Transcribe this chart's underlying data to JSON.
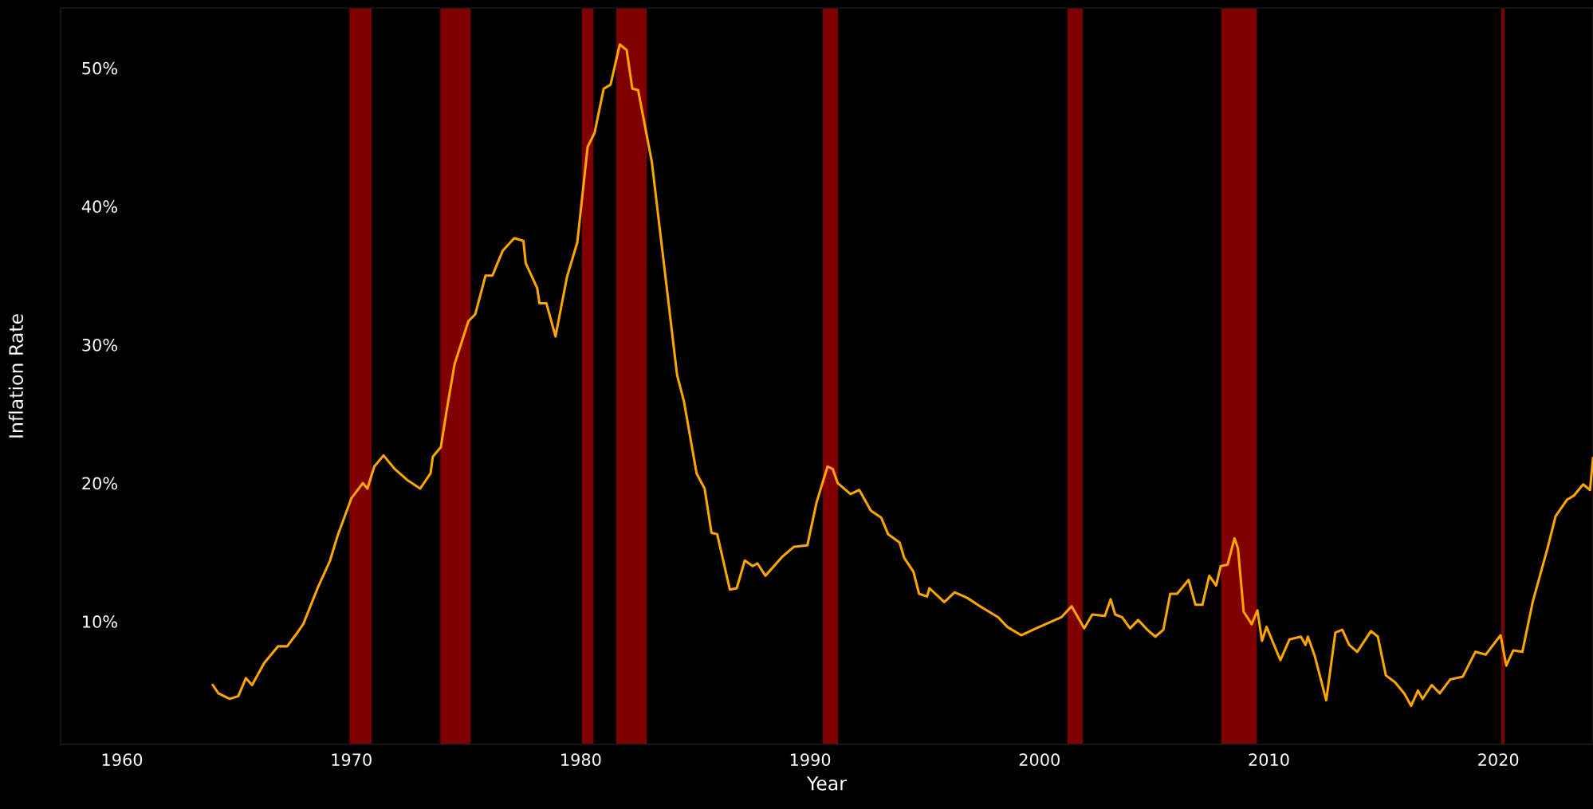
{
  "chart_data": {
    "type": "line",
    "xlabel": "Year",
    "ylabel": "Inflation Rate",
    "xlim": [
      1957.32,
      2024.13
    ],
    "xticks": [
      1960,
      1970,
      1980,
      1990,
      2000,
      2010,
      2020
    ],
    "ylim": [
      1.12,
      54.33
    ],
    "yticks": [
      {
        "value": 10,
        "label": "10%"
      },
      {
        "value": 20,
        "label": "20%"
      },
      {
        "value": 30,
        "label": "30%"
      },
      {
        "value": 40,
        "label": "40%"
      },
      {
        "value": 50,
        "label": "50%"
      }
    ],
    "bands": [
      {
        "axis": "x",
        "from": 1969.92,
        "to": 1970.88,
        "color": "#800000"
      },
      {
        "axis": "x",
        "from": 1973.88,
        "to": 1975.2,
        "color": "#800000"
      },
      {
        "axis": "x",
        "from": 1980.05,
        "to": 1980.55,
        "color": "#800000"
      },
      {
        "axis": "x",
        "from": 1981.55,
        "to": 1982.88,
        "color": "#800000"
      },
      {
        "axis": "x",
        "from": 1990.55,
        "to": 1991.22,
        "color": "#800000"
      },
      {
        "axis": "x",
        "from": 2001.22,
        "to": 2001.88,
        "color": "#800000"
      },
      {
        "axis": "x",
        "from": 2007.92,
        "to": 2009.47,
        "color": "#800000"
      },
      {
        "axis": "x",
        "from": 2020.13,
        "to": 2020.27,
        "color": "#800000"
      }
    ],
    "series": [
      {
        "color": "#ffa500",
        "x": [
          1963.96,
          1964.2,
          1964.7,
          1965.07,
          1965.4,
          1965.67,
          1966.2,
          1966.8,
          1967.2,
          1967.56,
          1967.9,
          1968.55,
          1969.07,
          1969.4,
          1970.0,
          1970.5,
          1970.7,
          1971.0,
          1971.4,
          1971.9,
          1972.45,
          1973.0,
          1973.45,
          1973.55,
          1973.9,
          1974.15,
          1974.5,
          1975.1,
          1975.4,
          1975.85,
          1976.15,
          1976.6,
          1977.1,
          1977.5,
          1977.6,
          1978.1,
          1978.2,
          1978.5,
          1978.9,
          1979.4,
          1979.85,
          1980.3,
          1980.6,
          1981.0,
          1981.3,
          1981.7,
          1982.0,
          1982.25,
          1982.5,
          1983.1,
          1983.7,
          1984.2,
          1984.5,
          1985.05,
          1985.4,
          1985.7,
          1985.95,
          1986.5,
          1986.8,
          1987.15,
          1987.5,
          1987.7,
          1988.05,
          1988.8,
          1989.3,
          1989.88,
          1990.28,
          1990.76,
          1990.99,
          1991.2,
          1991.76,
          1992.14,
          1992.65,
          1993.1,
          1993.4,
          1993.9,
          1994.1,
          1994.5,
          1994.75,
          1995.1,
          1995.2,
          1995.85,
          1996.3,
          1996.85,
          1997.4,
          1998.2,
          1998.6,
          1999.2,
          1999.85,
          2000.4,
          2000.95,
          2001.4,
          2001.95,
          2002.3,
          2002.85,
          2003.1,
          2003.3,
          2003.6,
          2003.95,
          2004.3,
          2004.7,
          2005.05,
          2005.4,
          2005.7,
          2006.0,
          2006.5,
          2006.8,
          2007.1,
          2007.4,
          2007.7,
          2007.9,
          2008.2,
          2008.5,
          2008.65,
          2008.9,
          2009.25,
          2009.5,
          2009.7,
          2009.9,
          2010.5,
          2010.9,
          2011.4,
          2011.6,
          2011.7,
          2012.0,
          2012.5,
          2012.9,
          2013.2,
          2013.5,
          2013.85,
          2014.45,
          2014.75,
          2015.1,
          2015.5,
          2015.9,
          2016.2,
          2016.5,
          2016.7,
          2017.1,
          2017.45,
          2017.9,
          2018.45,
          2019.0,
          2019.45,
          2020.1,
          2020.35,
          2020.65,
          2021.05,
          2021.5,
          2021.8,
          2022.15,
          2022.5,
          2023.0,
          2023.3,
          2023.7,
          2024.0,
          2024.13
        ],
        "values": [
          5.4,
          4.8,
          4.4,
          4.6,
          5.9,
          5.4,
          7.0,
          8.2,
          8.2,
          9.0,
          9.8,
          12.5,
          14.4,
          16.2,
          18.9,
          20.0,
          19.6,
          21.2,
          22.0,
          21.0,
          20.2,
          19.6,
          20.7,
          21.9,
          22.6,
          25.2,
          28.6,
          31.7,
          32.2,
          35.0,
          35.0,
          36.8,
          37.7,
          37.5,
          35.9,
          34.1,
          33.0,
          33.0,
          30.6,
          34.9,
          37.4,
          44.3,
          45.3,
          48.5,
          48.8,
          51.7,
          51.3,
          48.5,
          48.4,
          43.2,
          34.8,
          27.8,
          25.9,
          20.7,
          19.6,
          16.4,
          16.3,
          12.3,
          12.4,
          14.4,
          14.0,
          14.2,
          13.3,
          14.7,
          15.4,
          15.5,
          18.6,
          21.2,
          21.0,
          20.0,
          19.2,
          19.5,
          18.0,
          17.5,
          16.3,
          15.7,
          14.6,
          13.6,
          12.0,
          11.8,
          12.4,
          11.4,
          12.1,
          11.7,
          11.1,
          10.3,
          9.6,
          9.0,
          9.5,
          9.9,
          10.3,
          11.1,
          9.5,
          10.5,
          10.4,
          11.6,
          10.5,
          10.3,
          9.5,
          10.1,
          9.4,
          8.9,
          9.4,
          12.0,
          12.0,
          13.0,
          11.2,
          11.2,
          13.3,
          12.6,
          14.0,
          14.1,
          16.0,
          15.3,
          10.7,
          9.8,
          10.8,
          8.6,
          9.6,
          7.2,
          8.7,
          8.9,
          8.3,
          8.9,
          7.5,
          4.3,
          9.2,
          9.4,
          8.3,
          7.8,
          9.3,
          8.9,
          6.1,
          5.6,
          4.8,
          3.9,
          5.0,
          4.4,
          5.4,
          4.8,
          5.8,
          6.0,
          7.8,
          7.6,
          9.0,
          6.8,
          7.9,
          7.8,
          11.4,
          13.2,
          15.3,
          17.6,
          18.8,
          19.1,
          19.9,
          19.5,
          21.8
        ]
      }
    ]
  }
}
